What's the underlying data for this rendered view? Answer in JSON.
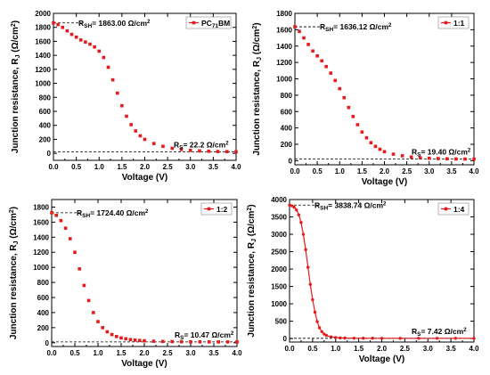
{
  "chart_data": [
    {
      "type": "scatter",
      "xlabel": "Voltage (V)",
      "ylabel": "Junction resistance, R_J (Ω/cm²)",
      "xlim": [
        0,
        4
      ],
      "ylim": [
        -100,
        2000
      ],
      "xticks": [
        "0.0",
        "0.5",
        "1.0",
        "1.5",
        "2.0",
        "2.5",
        "3.0",
        "3.5",
        "4.0"
      ],
      "yticks": [
        "0",
        "200",
        "400",
        "600",
        "800",
        "1000",
        "1200",
        "1400",
        "1600",
        "1800",
        "2000"
      ],
      "legend_position": "top-right",
      "marker_color": "#e41a1c",
      "series": [
        {
          "name": "PC71BM",
          "x": [
            0.0,
            0.1,
            0.2,
            0.3,
            0.4,
            0.5,
            0.6,
            0.7,
            0.8,
            0.9,
            1.0,
            1.1,
            1.2,
            1.3,
            1.4,
            1.5,
            1.6,
            1.7,
            1.8,
            1.9,
            2.0,
            2.2,
            2.4,
            2.6,
            2.8,
            3.0,
            3.2,
            3.4,
            3.6,
            3.8,
            4.0
          ],
          "y": [
            1863,
            1840,
            1800,
            1750,
            1700,
            1660,
            1620,
            1590,
            1560,
            1520,
            1460,
            1370,
            1230,
            1050,
            860,
            680,
            530,
            410,
            320,
            250,
            200,
            140,
            100,
            72,
            55,
            42,
            35,
            30,
            26,
            24,
            22
          ]
        }
      ],
      "annotations": {
        "rsh_label": "RSH = 1863.00 Ω/cm²",
        "rs_label": "RS = 22.2 Ω/cm²",
        "rsh_value": 1863,
        "rs_value": 22.2
      }
    },
    {
      "type": "scatter",
      "xlabel": "Voltage (V)",
      "ylabel": "Junction resistance, R_J (Ω/cm²)",
      "xlim": [
        0,
        4
      ],
      "ylim": [
        -50,
        1800
      ],
      "xticks": [
        "0.0",
        "0.5",
        "1.0",
        "1.5",
        "2.0",
        "2.5",
        "3.0",
        "3.5",
        "4.0"
      ],
      "yticks": [
        "0",
        "200",
        "400",
        "600",
        "800",
        "1000",
        "1200",
        "1400",
        "1600",
        "1800"
      ],
      "legend_position": "top-right",
      "marker_color": "#e41a1c",
      "series": [
        {
          "name": "1:1",
          "x": [
            0.0,
            0.1,
            0.2,
            0.3,
            0.4,
            0.5,
            0.6,
            0.7,
            0.8,
            0.9,
            1.0,
            1.1,
            1.2,
            1.3,
            1.4,
            1.5,
            1.6,
            1.7,
            1.8,
            1.9,
            2.0,
            2.2,
            2.4,
            2.6,
            2.8,
            3.0,
            3.2,
            3.4,
            3.6,
            3.8,
            4.0
          ],
          "y": [
            1636,
            1580,
            1500,
            1420,
            1340,
            1280,
            1220,
            1150,
            1070,
            980,
            880,
            770,
            650,
            540,
            440,
            350,
            280,
            220,
            175,
            140,
            110,
            80,
            60,
            45,
            36,
            30,
            26,
            23,
            21,
            20,
            19
          ]
        }
      ],
      "annotations": {
        "rsh_label": "RSH = 1636.12 Ω/cm²",
        "rs_label": "RS = 19.40 Ω/cm²",
        "rsh_value": 1636,
        "rs_value": 19.4
      }
    },
    {
      "type": "scatter",
      "xlabel": "Voltage (V)",
      "ylabel": "Junction resistance, R_J (Ω/cm²)",
      "xlim": [
        0,
        4
      ],
      "ylim": [
        -50,
        1900
      ],
      "xticks": [
        "0.0",
        "0.5",
        "1.0",
        "1.5",
        "2.0",
        "2.5",
        "3.0",
        "3.5",
        "4.0"
      ],
      "yticks": [
        "0",
        "200",
        "400",
        "600",
        "800",
        "1000",
        "1200",
        "1400",
        "1600",
        "1800"
      ],
      "legend_position": "top-right",
      "marker_color": "#e41a1c",
      "series": [
        {
          "name": "1:2",
          "x": [
            0.0,
            0.1,
            0.2,
            0.3,
            0.4,
            0.5,
            0.6,
            0.7,
            0.8,
            0.9,
            1.0,
            1.1,
            1.2,
            1.3,
            1.4,
            1.5,
            1.6,
            1.7,
            1.8,
            1.9,
            2.0,
            2.2,
            2.4,
            2.6,
            2.8,
            3.0,
            3.2,
            3.4,
            3.6,
            3.8,
            4.0
          ],
          "y": [
            1724,
            1690,
            1620,
            1520,
            1380,
            1200,
            980,
            760,
            560,
            400,
            280,
            200,
            145,
            108,
            82,
            64,
            52,
            42,
            35,
            30,
            26,
            20,
            17,
            15,
            13,
            12,
            11.5,
            11,
            10.8,
            10.6,
            10.5
          ]
        }
      ],
      "annotations": {
        "rsh_label": "RSH = 1724.40 Ω/cm²",
        "rs_label": "RS = 10.47 Ω/cm²",
        "rsh_value": 1724,
        "rs_value": 10.47
      }
    },
    {
      "type": "line",
      "xlabel": "Voltage (V)",
      "ylabel": "Junction resistance, R_J (Ω/cm²)",
      "xlim": [
        0,
        4
      ],
      "ylim": [
        -100,
        4000
      ],
      "xticks": [
        "0.0",
        "0.5",
        "1.0",
        "1.5",
        "2.0",
        "2.5",
        "3.0",
        "3.5",
        "4.0"
      ],
      "yticks": [
        "0",
        "500",
        "1000",
        "1500",
        "2000",
        "2500",
        "3000",
        "3500",
        "4000"
      ],
      "legend_position": "top-right",
      "marker_color": "#e41a1c",
      "series": [
        {
          "name": "1:4",
          "x": [
            0.0,
            0.05,
            0.1,
            0.15,
            0.2,
            0.25,
            0.3,
            0.35,
            0.4,
            0.45,
            0.5,
            0.55,
            0.6,
            0.65,
            0.7,
            0.75,
            0.8,
            0.9,
            1.0,
            1.1,
            1.2,
            1.4,
            1.6,
            1.8,
            2.0,
            2.4,
            2.8,
            3.2,
            3.6,
            4.0
          ],
          "y": [
            3839,
            3820,
            3780,
            3700,
            3560,
            3340,
            3000,
            2560,
            2050,
            1560,
            1120,
            760,
            490,
            310,
            200,
            130,
            90,
            50,
            30,
            20,
            15,
            11,
            9.5,
            8.8,
            8.3,
            7.9,
            7.7,
            7.6,
            7.5,
            7.4
          ]
        }
      ],
      "annotations": {
        "rsh_label": "RSH = 3838.74 Ω/cm²",
        "rs_label": "RS = 7.42 Ω/cm²",
        "rsh_value": 3839,
        "rs_value": 7.42
      }
    }
  ]
}
